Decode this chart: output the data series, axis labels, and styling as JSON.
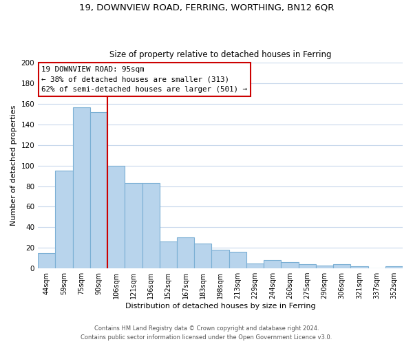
{
  "title1": "19, DOWNVIEW ROAD, FERRING, WORTHING, BN12 6QR",
  "title2": "Size of property relative to detached houses in Ferring",
  "xlabel": "Distribution of detached houses by size in Ferring",
  "ylabel": "Number of detached properties",
  "bar_color": "#b8d4ec",
  "bar_edge_color": "#7aafd4",
  "categories": [
    "44sqm",
    "59sqm",
    "75sqm",
    "90sqm",
    "106sqm",
    "121sqm",
    "136sqm",
    "152sqm",
    "167sqm",
    "183sqm",
    "198sqm",
    "213sqm",
    "229sqm",
    "244sqm",
    "260sqm",
    "275sqm",
    "290sqm",
    "306sqm",
    "321sqm",
    "337sqm",
    "352sqm"
  ],
  "values": [
    15,
    95,
    157,
    152,
    100,
    83,
    83,
    26,
    30,
    24,
    18,
    16,
    5,
    8,
    6,
    4,
    3,
    4,
    2,
    0,
    2
  ],
  "ylim": [
    0,
    200
  ],
  "yticks": [
    0,
    20,
    40,
    60,
    80,
    100,
    120,
    140,
    160,
    180,
    200
  ],
  "property_line_x": 3.5,
  "annotation_title": "19 DOWNVIEW ROAD: 95sqm",
  "annotation_line1": "← 38% of detached houses are smaller (313)",
  "annotation_line2": "62% of semi-detached houses are larger (501) →",
  "box_color": "white",
  "box_edge_color": "#cc0000",
  "vline_color": "#cc0000",
  "footer1": "Contains HM Land Registry data © Crown copyright and database right 2024.",
  "footer2": "Contains public sector information licensed under the Open Government Licence v3.0.",
  "grid_color": "#c8d8ec"
}
